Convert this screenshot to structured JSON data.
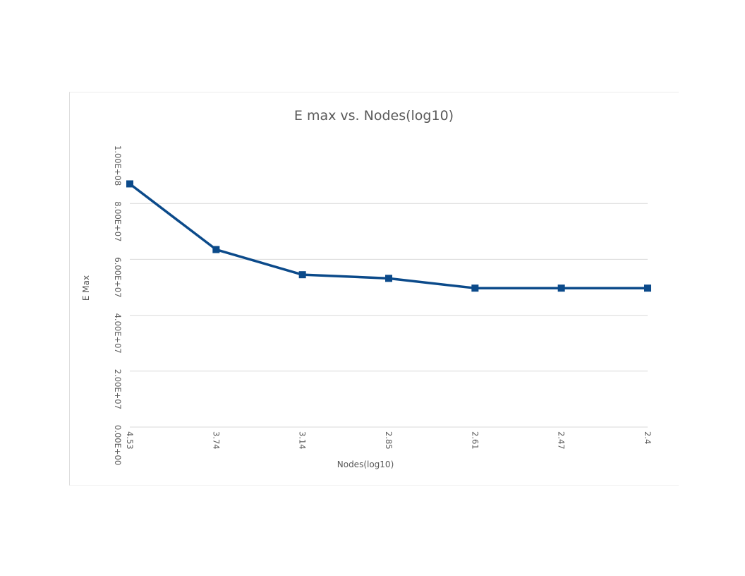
{
  "chart_data": {
    "type": "line",
    "title": "E max vs. Nodes(log10)",
    "xlabel": "Nodes(log10)",
    "ylabel": "E Max",
    "categories": [
      "4.53",
      "3.74",
      "3.14",
      "2.85",
      "2.61",
      "2.47",
      "2.4"
    ],
    "y_tick_labels": [
      "0.00E+00",
      "2.00E+07",
      "4.00E+07",
      "6.00E+07",
      "8.00E+07",
      "1.00E+08"
    ],
    "ylim": [
      0,
      100000000
    ],
    "grid": true,
    "legend": "none",
    "series": [
      {
        "values": [
          87000000,
          63500000,
          54500000,
          53200000,
          49700000,
          49700000,
          49700000
        ]
      }
    ],
    "colors": {
      "line": "#0b4a8a",
      "grid": "#d9d9d9",
      "text": "#595959"
    }
  }
}
